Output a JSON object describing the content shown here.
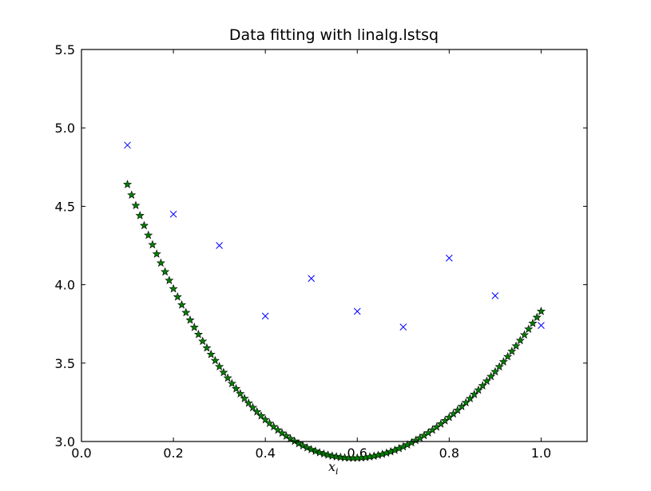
{
  "chart_data": {
    "type": "scatter",
    "title": "Data fitting with linalg.lstsq",
    "xlabel": "x",
    "xlabel_subscript": "i",
    "ylabel": "",
    "xlim": [
      0.0,
      1.1
    ],
    "ylim": [
      3.0,
      5.5
    ],
    "xticks": [
      0.0,
      0.2,
      0.4,
      0.6,
      0.8,
      1.0
    ],
    "xtick_labels": [
      "0.0",
      "0.2",
      "0.4",
      "0.6",
      "0.8",
      "1.0"
    ],
    "yticks": [
      3.0,
      3.5,
      4.0,
      4.5,
      5.0,
      5.5
    ],
    "ytick_labels": [
      "3.0",
      "3.5",
      "4.0",
      "4.5",
      "5.0",
      "5.5"
    ],
    "grid": false,
    "series": [
      {
        "kind": "data",
        "marker": "x",
        "color": "#0000ff",
        "x": [
          0.1,
          0.2,
          0.3,
          0.4,
          0.5,
          0.6,
          0.7,
          0.8,
          0.9,
          1.0
        ],
        "y": [
          4.89,
          4.45,
          4.25,
          3.8,
          4.04,
          3.83,
          3.73,
          4.17,
          3.93,
          3.74
        ]
      },
      {
        "kind": "fit",
        "marker": "star",
        "color": "#008000",
        "edge_color": "#000000",
        "x_start": 0.1,
        "x_end": 1.0,
        "num_points": 100,
        "poly_coeffs": [
          5.485,
          -9.39,
          9.535,
          -1.8
        ]
      }
    ]
  }
}
